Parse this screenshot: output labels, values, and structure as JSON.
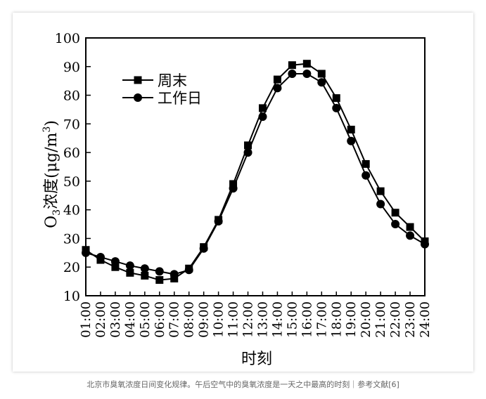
{
  "caption": "北京市臭氧浓度日间变化规律。午后空气中的臭氧浓度是一天之中最高的时刻｜参考文献[6]",
  "chart_data": {
    "type": "line",
    "title": "",
    "xlabel": "时刻",
    "ylabel_main": "O",
    "ylabel_sub": "3",
    "ylabel_rest": "浓度(μg/m",
    "ylabel_sup": "3",
    "ylabel_close": ")",
    "ylim": [
      10,
      100
    ],
    "yticks": [
      10,
      20,
      30,
      40,
      50,
      60,
      70,
      80,
      90,
      100
    ],
    "grid": false,
    "legend_position": "top-left",
    "categories": [
      "01:00",
      "02:00",
      "03:00",
      "04:00",
      "05:00",
      "06:00",
      "07:00",
      "08:00",
      "09:00",
      "10:00",
      "11:00",
      "12:00",
      "13:00",
      "14:00",
      "15:00",
      "16:00",
      "17:00",
      "18:00",
      "19:00",
      "20:00",
      "21:00",
      "22:00",
      "23:00",
      "24:00"
    ],
    "series": [
      {
        "name": "周末",
        "marker": "square",
        "values": [
          26,
          22.5,
          20,
          18,
          17,
          15.5,
          16,
          19.5,
          27,
          36.5,
          49,
          62.5,
          75.5,
          85.5,
          90.5,
          91,
          87.5,
          79,
          68,
          56,
          46.5,
          39,
          34,
          29
        ]
      },
      {
        "name": "工作日",
        "marker": "circle",
        "values": [
          25,
          23.5,
          22,
          20.5,
          19.5,
          18.5,
          17.5,
          19,
          26.5,
          36,
          47.5,
          60,
          72.5,
          82.5,
          87.5,
          87.5,
          84.5,
          75.5,
          64,
          52,
          42,
          35,
          31,
          28
        ]
      }
    ]
  }
}
